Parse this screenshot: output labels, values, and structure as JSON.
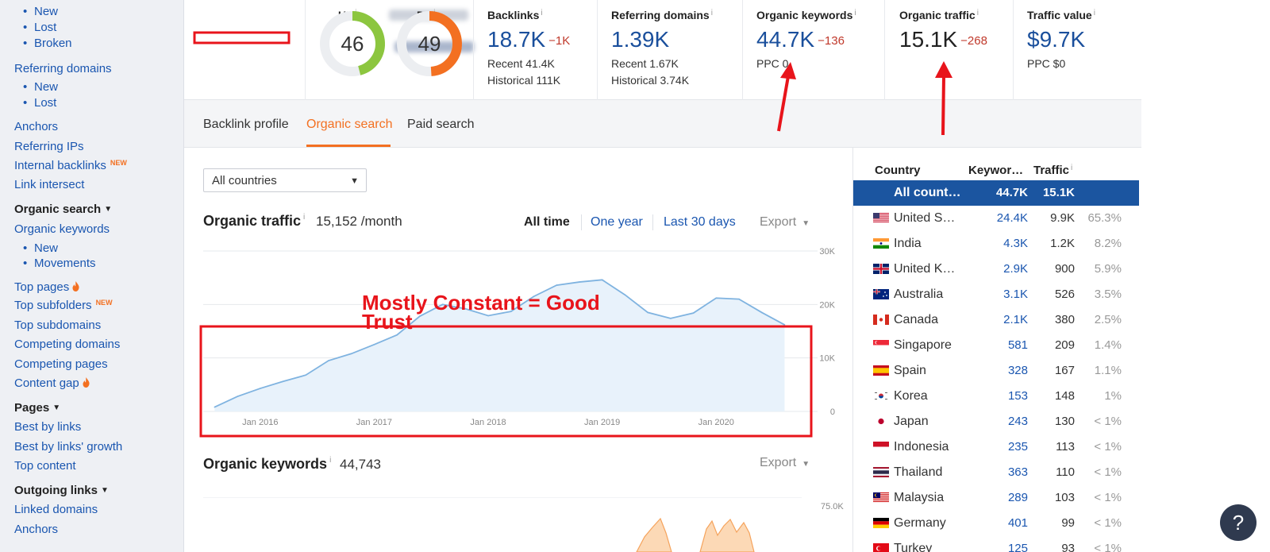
{
  "sidebar": {
    "items": [
      {
        "label": "New",
        "type": "sub"
      },
      {
        "label": "Lost",
        "type": "sub"
      },
      {
        "label": "Broken",
        "type": "sub"
      },
      {
        "label": "Referring domains",
        "type": "main"
      },
      {
        "label": "New",
        "type": "sub"
      },
      {
        "label": "Lost",
        "type": "sub"
      },
      {
        "label": "Anchors",
        "type": "main"
      },
      {
        "label": "Referring IPs",
        "type": "main"
      },
      {
        "label": "Internal backlinks",
        "type": "main",
        "badge": "NEW"
      },
      {
        "label": "Link intersect",
        "type": "main"
      },
      {
        "label": "Organic search",
        "type": "head"
      },
      {
        "label": "Organic keywords",
        "type": "main"
      },
      {
        "label": "New",
        "type": "sub"
      },
      {
        "label": "Movements",
        "type": "sub"
      },
      {
        "label": "Top pages",
        "type": "main",
        "icon": "flame-icon"
      },
      {
        "label": "Top subfolders",
        "type": "main",
        "badge": "NEW"
      },
      {
        "label": "Top subdomains",
        "type": "main"
      },
      {
        "label": "Competing domains",
        "type": "main"
      },
      {
        "label": "Competing pages",
        "type": "main"
      },
      {
        "label": "Content gap",
        "type": "main",
        "icon": "flame-icon"
      },
      {
        "label": "Pages",
        "type": "head"
      },
      {
        "label": "Best by links",
        "type": "main"
      },
      {
        "label": "Best by links' growth",
        "type": "main"
      },
      {
        "label": "Top content",
        "type": "main"
      },
      {
        "label": "Outgoing links",
        "type": "head"
      },
      {
        "label": "Linked domains",
        "type": "main"
      },
      {
        "label": "Anchors",
        "type": "main"
      }
    ]
  },
  "metrics": {
    "ur": {
      "label": "UR",
      "value": "46",
      "fraction": 0.46,
      "color": "#8cc63f"
    },
    "dr": {
      "label": "DR",
      "value": "49",
      "fraction": 0.49,
      "color": "#f37021"
    },
    "backlinks": {
      "label": "Backlinks",
      "value": "18.7K",
      "delta": "−1K",
      "recent": "Recent 41.4K",
      "historical": "Historical 111K"
    },
    "referring_domains": {
      "label": "Referring domains",
      "value": "1.39K",
      "recent": "Recent 1.67K",
      "historical": "Historical 3.74K"
    },
    "organic_keywords": {
      "label": "Organic keywords",
      "value": "44.7K",
      "delta": "−136",
      "sub": "PPC 0"
    },
    "organic_traffic": {
      "label": "Organic traffic",
      "value": "15.1K",
      "delta": "−268"
    },
    "traffic_value": {
      "label": "Traffic value",
      "value": "$9.7K",
      "sub": "PPC $0"
    }
  },
  "tabs": [
    "Backlink profile",
    "Organic search",
    "Paid search"
  ],
  "filter": {
    "country": "All countries"
  },
  "traffic_section": {
    "title": "Organic traffic",
    "value": "15,152 /month",
    "ranges": [
      "All time",
      "One year",
      "Last 30 days"
    ],
    "export_label": "Export"
  },
  "keywords_section": {
    "title": "Organic keywords",
    "value": "44,743",
    "export_label": "Export",
    "y_top_label": "75.0K"
  },
  "annotation": {
    "line1": "Mostly Constant = Good",
    "line2": "Trust"
  },
  "chart_data": {
    "type": "area",
    "title": "Organic traffic",
    "x_ticks": [
      "Jan 2016",
      "Jan 2017",
      "Jan 2018",
      "Jan 2019",
      "Jan 2020"
    ],
    "y_ticks": [
      "30K",
      "20K",
      "10K",
      "0"
    ],
    "ylim": [
      0,
      30000
    ],
    "series_color": "#7fb3e0",
    "x": [
      2015.6,
      2015.8,
      2016.0,
      2016.2,
      2016.4,
      2016.6,
      2016.8,
      2017.0,
      2017.2,
      2017.4,
      2017.6,
      2017.8,
      2018.0,
      2018.2,
      2018.4,
      2018.6,
      2018.8,
      2019.0,
      2019.2,
      2019.4,
      2019.6,
      2019.8,
      2020.0,
      2020.2,
      2020.4,
      2020.6
    ],
    "values": [
      800,
      2800,
      4300,
      5600,
      6800,
      9500,
      10800,
      12500,
      14300,
      17800,
      20000,
      19200,
      17900,
      18700,
      21500,
      23600,
      24200,
      24600,
      21800,
      18500,
      17400,
      18400,
      21200,
      21000,
      18500,
      16200
    ]
  },
  "country_table": {
    "headers": {
      "country": "Country",
      "keywords": "Keywor…",
      "traffic": "Traffic"
    },
    "rows": [
      {
        "flag": "globe",
        "name": "All count…",
        "kw": "44.7K",
        "traffic": "15.1K",
        "pct": "",
        "selected": true
      },
      {
        "flag": "us",
        "name": "United S…",
        "kw": "24.4K",
        "traffic": "9.9K",
        "pct": "65.3%"
      },
      {
        "flag": "in",
        "name": "India",
        "kw": "4.3K",
        "traffic": "1.2K",
        "pct": "8.2%"
      },
      {
        "flag": "uk",
        "name": "United K…",
        "kw": "2.9K",
        "traffic": "900",
        "pct": "5.9%"
      },
      {
        "flag": "au",
        "name": "Australia",
        "kw": "3.1K",
        "traffic": "526",
        "pct": "3.5%"
      },
      {
        "flag": "ca",
        "name": "Canada",
        "kw": "2.1K",
        "traffic": "380",
        "pct": "2.5%"
      },
      {
        "flag": "sg",
        "name": "Singapore",
        "kw": "581",
        "traffic": "209",
        "pct": "1.4%"
      },
      {
        "flag": "es",
        "name": "Spain",
        "kw": "328",
        "traffic": "167",
        "pct": "1.1%"
      },
      {
        "flag": "kr",
        "name": "Korea",
        "kw": "153",
        "traffic": "148",
        "pct": "1%"
      },
      {
        "flag": "jp",
        "name": "Japan",
        "kw": "243",
        "traffic": "130",
        "pct": "< 1%"
      },
      {
        "flag": "id",
        "name": "Indonesia",
        "kw": "235",
        "traffic": "113",
        "pct": "< 1%"
      },
      {
        "flag": "th",
        "name": "Thailand",
        "kw": "363",
        "traffic": "110",
        "pct": "< 1%"
      },
      {
        "flag": "my",
        "name": "Malaysia",
        "kw": "289",
        "traffic": "103",
        "pct": "< 1%"
      },
      {
        "flag": "de",
        "name": "Germany",
        "kw": "401",
        "traffic": "99",
        "pct": "< 1%"
      },
      {
        "flag": "tr",
        "name": "Turkey",
        "kw": "125",
        "traffic": "93",
        "pct": "< 1%"
      }
    ]
  },
  "help_label": "?"
}
